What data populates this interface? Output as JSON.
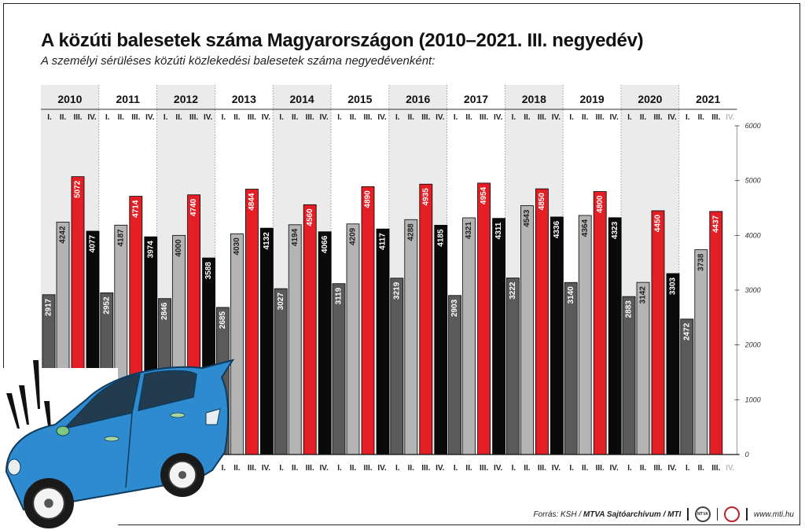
{
  "title": "A közúti balesetek száma Magyarországon (2010–2021. III. negyedév)",
  "subtitle": "A személyi sérüléses közúti közlekedési balesetek száma negyedévenként:",
  "footer": {
    "source_prefix": "Forrás: KSH / ",
    "source_org": "MTVA Sajtóarchívum / MTI",
    "url": "www.mti.hu",
    "logo_1": "mtva-logo-icon",
    "logo_2": "mti-logo-icon"
  },
  "colors": {
    "q1": "#5a5a5a",
    "q2": "#b4b4b4",
    "q3": "#e31e24",
    "q4": "#0a0a0a",
    "shade": "#ebebeb",
    "missing_label": "#bbbbbb"
  },
  "illustration": "crashed-blue-car-icon",
  "chart_data": {
    "type": "bar",
    "title": "A közúti balesetek száma Magyarországon (2010–2021. III. negyedév)",
    "subtitle": "A személyi sérüléses közúti közlekedési balesetek száma negyedévenként:",
    "ylim": [
      0,
      6000
    ],
    "yticks": [
      0,
      1000,
      2000,
      3000,
      4000,
      5000,
      6000
    ],
    "y_axis_position": "right",
    "quarter_labels": [
      "I.",
      "II.",
      "III.",
      "IV."
    ],
    "grid": false,
    "years": [
      {
        "year": "2010",
        "values": [
          2917,
          4242,
          5072,
          4077
        ]
      },
      {
        "year": "2011",
        "values": [
          2952,
          4187,
          4714,
          3974
        ]
      },
      {
        "year": "2012",
        "values": [
          2846,
          4000,
          4740,
          3588
        ]
      },
      {
        "year": "2013",
        "values": [
          2685,
          4030,
          4844,
          4132
        ]
      },
      {
        "year": "2014",
        "values": [
          3027,
          4194,
          4560,
          4066
        ]
      },
      {
        "year": "2015",
        "values": [
          3119,
          4209,
          4890,
          4117
        ]
      },
      {
        "year": "2016",
        "values": [
          3219,
          4288,
          4935,
          4185
        ]
      },
      {
        "year": "2017",
        "values": [
          2903,
          4321,
          4954,
          4311
        ]
      },
      {
        "year": "2018",
        "values": [
          3222,
          4543,
          4850,
          4336
        ]
      },
      {
        "year": "2019",
        "values": [
          3140,
          4364,
          4800,
          4323
        ]
      },
      {
        "year": "2020",
        "values": [
          2883,
          3142,
          4450,
          3303
        ]
      },
      {
        "year": "2021",
        "values": [
          2472,
          3738,
          4437,
          null
        ]
      }
    ]
  }
}
